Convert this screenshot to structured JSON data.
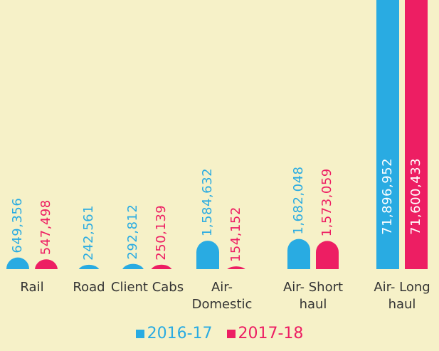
{
  "chart_data": {
    "type": "bar",
    "categories": [
      "Rail",
      "Road",
      "Client Cabs",
      "Air- Domestic",
      "Air- Short haul",
      "Air- Long haul"
    ],
    "series": [
      {
        "name": "2016-17",
        "color": "#29abe2",
        "values": [
          649356,
          242561,
          292812,
          1584632,
          1682048,
          71896952
        ],
        "value_labels": [
          "649,356",
          "242,561",
          "292,812",
          "1,584,632",
          "1,682,048",
          "71,896,952"
        ]
      },
      {
        "name": "2017-18",
        "color": "#ed1e63",
        "values": [
          547498,
          null,
          250139,
          154152,
          1573059,
          71600433
        ],
        "value_labels": [
          "547,498",
          null,
          "250,139",
          "154,152",
          "1,573,059",
          "71,600,433"
        ]
      }
    ],
    "ylim": [
      0,
      15000000
    ]
  }
}
